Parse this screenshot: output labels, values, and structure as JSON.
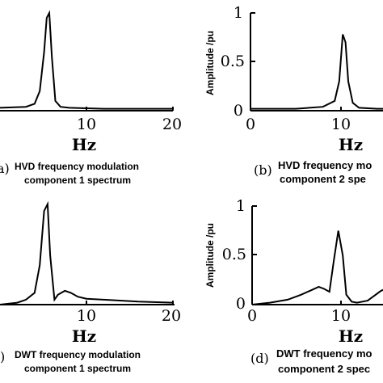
{
  "chart_data": [
    {
      "id": "a",
      "type": "line",
      "letter": "a)",
      "caption_line1": "HVD frequency modulation",
      "caption_line2": "component 1 spectrum",
      "xlabel": "Hz",
      "ylabel": "",
      "xticks": [
        "10",
        "20"
      ],
      "yticks": [],
      "xlim": [
        0,
        20
      ],
      "ylim": [
        0,
        1
      ],
      "x": [
        0,
        3,
        4,
        4.6,
        5.1,
        5.4,
        5.7,
        6.0,
        6.4,
        7.0,
        8,
        12,
        20
      ],
      "y": [
        0.03,
        0.04,
        0.07,
        0.2,
        0.6,
        0.95,
        1.0,
        0.55,
        0.1,
        0.04,
        0.03,
        0.02,
        0.02
      ]
    },
    {
      "id": "b",
      "type": "line",
      "letter": "(b)",
      "caption_line1": "HVD frequency mo",
      "caption_line2": "component 2 spe",
      "xlabel": "Hz",
      "ylabel": "Amplitude /pu",
      "xticks": [
        "0",
        "10"
      ],
      "yticks": [
        "0",
        "0.5",
        "1"
      ],
      "xlim": [
        0,
        20
      ],
      "ylim": [
        0,
        1
      ],
      "x": [
        0,
        5,
        8,
        9.3,
        9.8,
        10.2,
        10.5,
        10.8,
        11.3,
        12,
        14,
        20
      ],
      "y": [
        0.02,
        0.02,
        0.04,
        0.1,
        0.3,
        0.78,
        0.7,
        0.3,
        0.08,
        0.03,
        0.02,
        0.02
      ]
    },
    {
      "id": "c",
      "type": "line",
      "letter": ")",
      "caption_line1": "DWT frequency modulation",
      "caption_line2": "component 1 spectrum",
      "xlabel": "Hz",
      "ylabel": "",
      "xticks": [
        "10",
        "20"
      ],
      "yticks": [],
      "xlim": [
        0,
        20
      ],
      "ylim": [
        0,
        1
      ],
      "x": [
        0,
        2,
        3,
        4,
        4.6,
        5.1,
        5.5,
        5.8,
        6.3,
        6.7,
        7.5,
        8.2,
        9,
        10,
        12,
        16,
        20
      ],
      "y": [
        0.0,
        0.02,
        0.05,
        0.12,
        0.4,
        0.95,
        1.02,
        0.5,
        0.05,
        0.1,
        0.14,
        0.12,
        0.08,
        0.06,
        0.05,
        0.03,
        0.02
      ]
    },
    {
      "id": "d",
      "type": "line",
      "letter": "(d)",
      "caption_line1": "DWT frequency mo",
      "caption_line2": "component 2 spec",
      "xlabel": "Hz",
      "ylabel": "Amplitude /pu",
      "xticks": [
        "0",
        "10"
      ],
      "yticks": [
        "0",
        "0.5",
        "1"
      ],
      "xlim": [
        0,
        20
      ],
      "ylim": [
        0,
        1
      ],
      "x": [
        0,
        2,
        4,
        5.5,
        6.5,
        7.5,
        8.1,
        8.7,
        9.2,
        9.7,
        10.2,
        10.6,
        11.2,
        11.8,
        13,
        14.5,
        16,
        17
      ],
      "y": [
        0.0,
        0.02,
        0.05,
        0.1,
        0.14,
        0.18,
        0.16,
        0.13,
        0.45,
        0.75,
        0.5,
        0.1,
        0.03,
        0.02,
        0.04,
        0.14,
        0.2,
        0.22
      ]
    }
  ]
}
